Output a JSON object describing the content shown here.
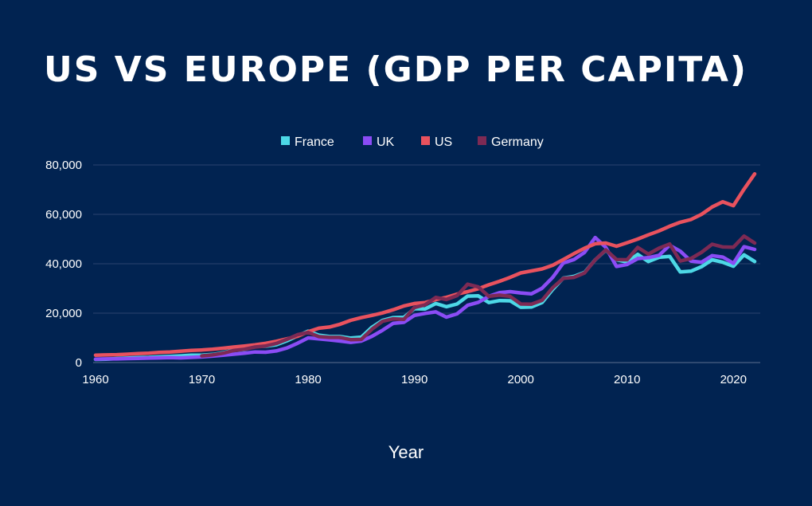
{
  "chart_data": {
    "type": "line",
    "title": "US VS EUROPE (GDP PER CAPITA)",
    "xlabel": "Year",
    "ylabel": "",
    "xlim": [
      1960,
      2022
    ],
    "ylim": [
      0,
      80000
    ],
    "x_ticks": [
      "1960",
      "1970",
      "1980",
      "1990",
      "2000",
      "2010",
      "2020"
    ],
    "y_ticks": [
      "0",
      "20,000",
      "40,000",
      "60,000",
      "80,000"
    ],
    "grid": true,
    "legend_position": "top",
    "x": [
      1960,
      1961,
      1962,
      1963,
      1964,
      1965,
      1966,
      1967,
      1968,
      1969,
      1970,
      1971,
      1972,
      1973,
      1974,
      1975,
      1976,
      1977,
      1978,
      1979,
      1980,
      1981,
      1982,
      1983,
      1984,
      1985,
      1986,
      1987,
      1988,
      1989,
      1990,
      1991,
      1992,
      1993,
      1994,
      1995,
      1996,
      1997,
      1998,
      1999,
      2000,
      2001,
      2002,
      2003,
      2004,
      2005,
      2006,
      2007,
      2008,
      2009,
      2010,
      2011,
      2012,
      2013,
      2014,
      2015,
      2016,
      2017,
      2018,
      2019,
      2020,
      2021,
      2022
    ],
    "series": [
      {
        "name": "France",
        "color": "#4dd8e6",
        "values": [
          1300,
          1400,
          1600,
          1800,
          2000,
          2100,
          2300,
          2500,
          2700,
          3000,
          3000,
          3300,
          4000,
          5000,
          5300,
          6600,
          6600,
          7200,
          8800,
          10800,
          12700,
          11100,
          10500,
          10500,
          9900,
          10300,
          14300,
          17100,
          18200,
          18300,
          21800,
          21700,
          23900,
          22600,
          23700,
          26900,
          27000,
          24300,
          25100,
          25000,
          22400,
          22500,
          24300,
          29600,
          34200,
          34900,
          36500,
          41600,
          45500,
          41600,
          40700,
          43800,
          40900,
          42600,
          43000,
          36700,
          37000,
          38800,
          41600,
          40600,
          39000,
          43600,
          40900
        ]
      },
      {
        "name": "UK",
        "color": "#8b4cf5",
        "values": [
          1400,
          1500,
          1500,
          1600,
          1700,
          1800,
          1900,
          2000,
          1900,
          2100,
          2300,
          2600,
          3000,
          3400,
          3800,
          4300,
          4200,
          4700,
          5900,
          7800,
          10000,
          9600,
          9200,
          8700,
          8200,
          8700,
          10600,
          13100,
          15900,
          16300,
          19100,
          19900,
          20500,
          18400,
          19700,
          23200,
          24400,
          26800,
          28300,
          28700,
          28200,
          27800,
          30100,
          34500,
          40300,
          41700,
          44600,
          50600,
          46600,
          38900,
          39700,
          42100,
          42500,
          43400,
          47500,
          45100,
          41100,
          40600,
          43300,
          42700,
          40200,
          46900,
          45800
        ]
      },
      {
        "name": "US",
        "color": "#e9525e",
        "values": [
          3000,
          3100,
          3200,
          3400,
          3600,
          3800,
          4100,
          4300,
          4600,
          4900,
          5100,
          5400,
          5800,
          6300,
          6700,
          7200,
          7800,
          8600,
          9600,
          10600,
          12500,
          13900,
          14400,
          15500,
          17100,
          18200,
          19100,
          20100,
          21400,
          22900,
          23900,
          24300,
          25500,
          26400,
          27700,
          28700,
          29900,
          31500,
          32900,
          34500,
          36300,
          37100,
          37900,
          39400,
          41700,
          44100,
          46300,
          48100,
          48400,
          47100,
          48500,
          50000,
          51700,
          53300,
          55200,
          56800,
          57900,
          60000,
          63000,
          65100,
          63500,
          70200,
          76400
        ]
      },
      {
        "name": "Germany",
        "color": "#7d2a54",
        "values": [
          null,
          null,
          null,
          null,
          null,
          null,
          null,
          null,
          null,
          null,
          2700,
          3100,
          3800,
          4900,
          5400,
          6300,
          6700,
          7700,
          9400,
          11300,
          12200,
          10500,
          10200,
          10200,
          9300,
          9400,
          13500,
          16700,
          17700,
          17500,
          22300,
          23400,
          26400,
          25500,
          27100,
          31700,
          30600,
          26800,
          27300,
          26800,
          23700,
          23600,
          25200,
          30300,
          34100,
          34500,
          36300,
          41600,
          45600,
          41700,
          41600,
          46600,
          43900,
          46300,
          48000,
          41100,
          42100,
          44600,
          47900,
          46800,
          46700,
          51200,
          48400
        ]
      }
    ]
  }
}
